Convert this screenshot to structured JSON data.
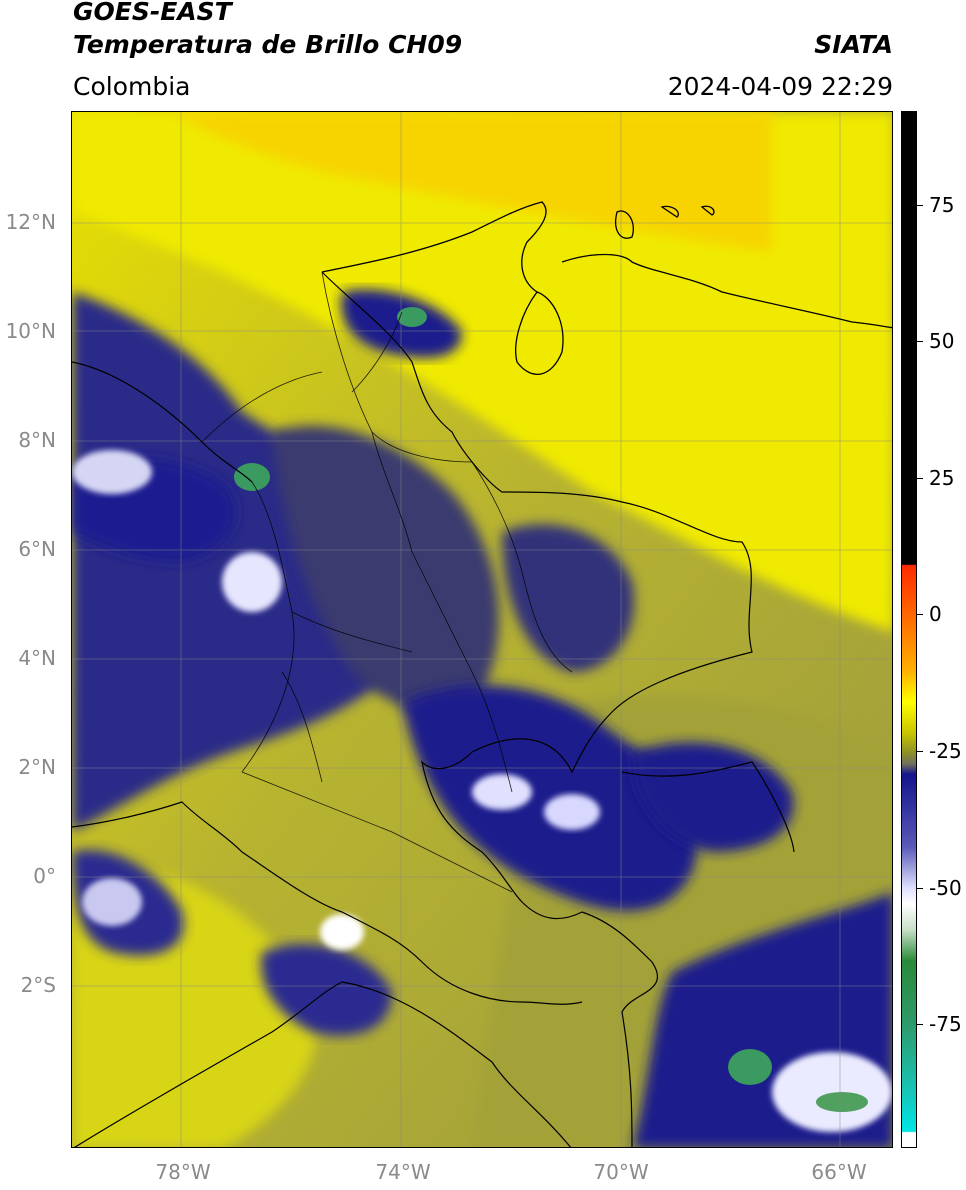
{
  "header": {
    "satellite": "GOES-EAST",
    "product": "Temperatura de Brillo CH09",
    "region": "Colombia",
    "source": "SIATA",
    "datetime": "2024-04-09 22:29"
  },
  "lat_labels": [
    "12°N",
    "10°N",
    "8°N",
    "6°N",
    "4°N",
    "2°N",
    "0°",
    "2°S"
  ],
  "lon_labels": [
    "78°W",
    "74°W",
    "70°W",
    "66°W"
  ],
  "colorbar": {
    "ticks": [
      "75",
      "50",
      "25",
      "0",
      "-25",
      "-50",
      "-75"
    ],
    "colors": {
      "black": "#000000",
      "red": "#ff2a00",
      "orange": "#ff9a00",
      "yellow": "#ffff00",
      "olive": "#8c8c2a",
      "gray": "#6a6a6a",
      "navy": "#14148c",
      "white": "#ffffff",
      "green": "#2e8b57",
      "cyan": "#00e5e5"
    }
  },
  "map": {
    "colors": {
      "warm": "#f0e800",
      "moist": "#aaa830",
      "dry_gray": "#7a7a5a",
      "cloud": "#1a1a8a",
      "cold_top": "#ffffff",
      "very_cold": "#3aa060"
    },
    "grid": "on",
    "features": [
      "coastline",
      "country-borders",
      "department-borders"
    ]
  }
}
